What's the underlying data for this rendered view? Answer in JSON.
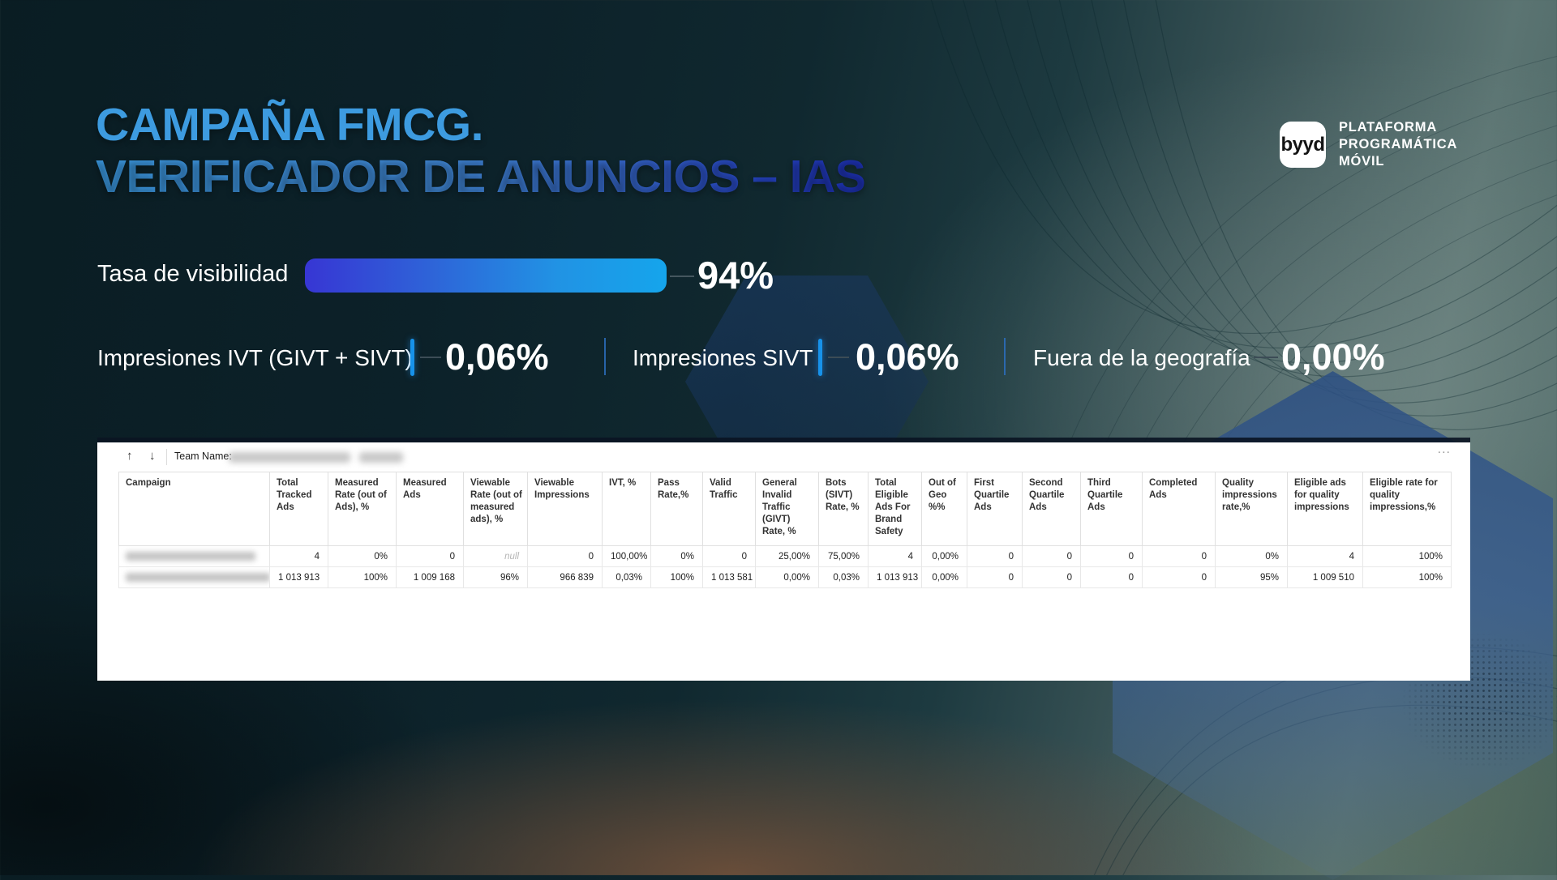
{
  "title": {
    "line1": "CAMPAÑA FMCG.",
    "line2": "VERIFICADOR DE ANUNCIOS – IAS"
  },
  "logo": {
    "wordmark": "byyd",
    "tagline": [
      "PLATAFORMA",
      "PROGRAMÁTICA",
      "MÓVIL"
    ]
  },
  "visibility": {
    "label": "Tasa de visibilidad",
    "value": "94%",
    "percent": 94
  },
  "metrics": [
    {
      "label": "Impresiones IVT (GIVT + SIVT)",
      "value": "0,06%"
    },
    {
      "label": "Impresiones SIVT",
      "value": "0,06%"
    },
    {
      "label": "Fuera de la geografía",
      "value": "0,00%"
    }
  ],
  "report_panel": {
    "toolbar": {
      "sort_up_icon": "↑",
      "sort_down_icon": "↓",
      "team_name_label": "Team Name:",
      "team_name_value_redacted": true,
      "more_icon": "..."
    },
    "table": {
      "columns": [
        "Campaign",
        "Total Tracked Ads",
        "Measured Rate (out of Ads), %",
        "Measured Ads",
        "Viewable Rate (out of measured ads), %",
        "Viewable Impressions",
        "IVT, %",
        "Pass Rate,%",
        "Valid Traffic",
        "General Invalid Traffic (GIVT) Rate, %",
        "Bots (SIVT) Rate, %",
        "Total Eligible Ads For Brand Safety",
        "Out of Geo %%",
        "First Quartile Ads",
        "Second Quartile Ads",
        "Third Quartile Ads",
        "Completed Ads",
        "Quality impressions rate,%",
        "Eligible ads for quality impressions",
        "Eligible rate for quality impressions,%"
      ],
      "rows": [
        {
          "campaign_redacted": true,
          "values": [
            "4",
            "0%",
            "0",
            "null",
            "0",
            "100,00%",
            "0%",
            "0",
            "25,00%",
            "75,00%",
            "4",
            "0,00%",
            "0",
            "0",
            "0",
            "0",
            "0%",
            "4",
            "100%"
          ]
        },
        {
          "campaign_redacted": true,
          "values": [
            "1 013 913",
            "100%",
            "1 009 168",
            "96%",
            "966 839",
            "0,03%",
            "100%",
            "1 013 581",
            "0,00%",
            "0,03%",
            "1 013 913",
            "0,00%",
            "0",
            "0",
            "0",
            "0",
            "95%",
            "1 009 510",
            "100%"
          ]
        }
      ]
    }
  },
  "colors": {
    "title_blue": "#3d9be0",
    "title_gradient_end": "#1c2fae",
    "bar_gradient_start": "#3736d4",
    "bar_gradient_end": "#15a5ec",
    "accent_tick_blue": "#1792ea",
    "background_dark_teal": "#0a1d23",
    "background_light_teal": "#5b7472",
    "panel_white": "#ffffff"
  }
}
